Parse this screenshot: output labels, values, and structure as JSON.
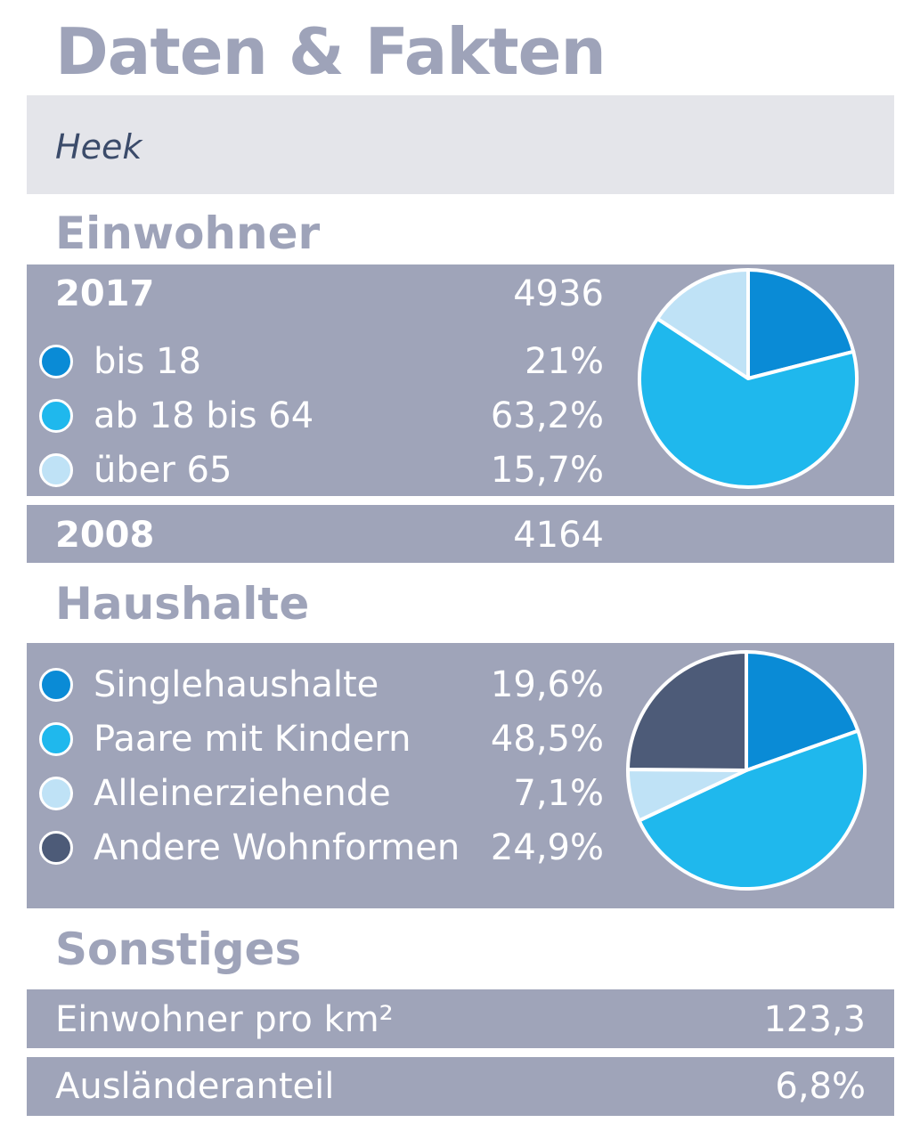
{
  "page": {
    "title": "Daten & Fakten",
    "location": "Heek"
  },
  "sections": {
    "einwohner": "Einwohner",
    "haushalte": "Haushalte",
    "sonstiges": "Sonstiges"
  },
  "einwohner": {
    "year_current": "2017",
    "value_current": "4936",
    "year_previous": "2008",
    "value_previous": "4164"
  },
  "sonstiges": {
    "rows": [
      {
        "label": "Einwohner pro km²",
        "value": "123,3"
      },
      {
        "label": "Ausländeranteil",
        "value": "6,8%"
      }
    ]
  },
  "colors": {
    "slice_1": "#0a8bd6",
    "slice_2": "#1fb8ed",
    "slice_3": "#bfe2f6",
    "slice_4": "#4d5b78",
    "panel": "#9fa4b9",
    "heading": "#9ea3b9"
  },
  "chart_data": [
    {
      "type": "pie",
      "title": "",
      "categories": [
        "bis 18",
        "ab 18 bis 64",
        "über 65"
      ],
      "values": [
        21,
        63.2,
        15.7
      ],
      "value_labels": [
        "21%",
        "63,2%",
        "15,7%"
      ],
      "colors": [
        "#0a8bd6",
        "#1fb8ed",
        "#bfe2f6"
      ]
    },
    {
      "type": "pie",
      "title": "",
      "categories": [
        "Singlehaushalte",
        "Paare mit Kindern",
        "Alleinerziehende",
        "Andere Wohnformen"
      ],
      "values": [
        19.6,
        48.5,
        7.1,
        24.9
      ],
      "value_labels": [
        "19,6%",
        "48,5%",
        "7,1%",
        "24,9%"
      ],
      "colors": [
        "#0a8bd6",
        "#1fb8ed",
        "#bfe2f6",
        "#4d5b78"
      ]
    }
  ]
}
